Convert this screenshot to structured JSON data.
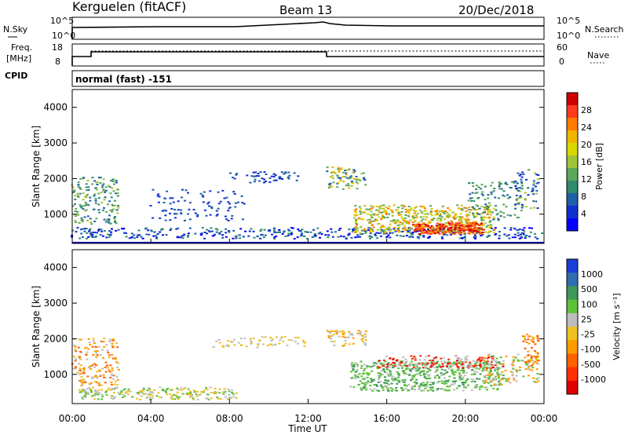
{
  "header": {
    "station": "Kerguelen (fitACF)",
    "beam": "Beam 13",
    "date": "20/Dec/2018"
  },
  "top_panels": {
    "nsky_label": "N.Sky",
    "nsearch_label": "N.Search",
    "freq_label_1": "Freq.",
    "freq_label_2": "[MHz]",
    "nave_label": "Nave",
    "cpid_label": "CPID",
    "nsky_ticks": [
      "10^5",
      "10^0"
    ],
    "nsearch_ticks": [
      "10^5",
      "10^0"
    ],
    "freq_ticks": [
      "18",
      "8"
    ],
    "nave_ticks": [
      "60",
      "0"
    ],
    "cpid_text": "normal (fast) -151"
  },
  "chart_data": [
    {
      "type": "heatmap",
      "ylabel": "Slant Range [km]",
      "yticks": [
        "4000",
        "3000",
        "2000",
        "1000"
      ],
      "ylim": [
        180,
        4500
      ],
      "colorbar_label": "Power [dB]",
      "colorbar_ticks": [
        "28",
        "24",
        "20",
        "16",
        "12",
        "8",
        "4"
      ],
      "colorbar_colors": [
        "#d00000",
        "#ff3b1f",
        "#ff7a00",
        "#f0b400",
        "#d8d800",
        "#9fc43a",
        "#5aa85a",
        "#2f8a6e",
        "#1f5fa8",
        "#1030d0",
        "#0000ff"
      ]
    },
    {
      "type": "heatmap",
      "ylabel": "Slant Range [km]",
      "yticks": [
        "4000",
        "3000",
        "2000",
        "1000"
      ],
      "ylim": [
        180,
        4500
      ],
      "colorbar_label": "Velocity [m s⁻¹]",
      "colorbar_ticks": [
        "1000",
        "500",
        "100",
        "25",
        "-25",
        "-100",
        "-500",
        "-1000"
      ],
      "colorbar_colors": [
        "#1a3fd6",
        "#2f6fb0",
        "#3e9a5a",
        "#5cc23a",
        "#bdbdbd",
        "#f0c020",
        "#ff9a00",
        "#ff6000",
        "#ff3000",
        "#e00000"
      ]
    }
  ],
  "x_axis": {
    "xlabel": "Time UT",
    "ticks": [
      "00:00",
      "04:00",
      "08:00",
      "12:00",
      "16:00",
      "20:00",
      "00:00"
    ]
  }
}
